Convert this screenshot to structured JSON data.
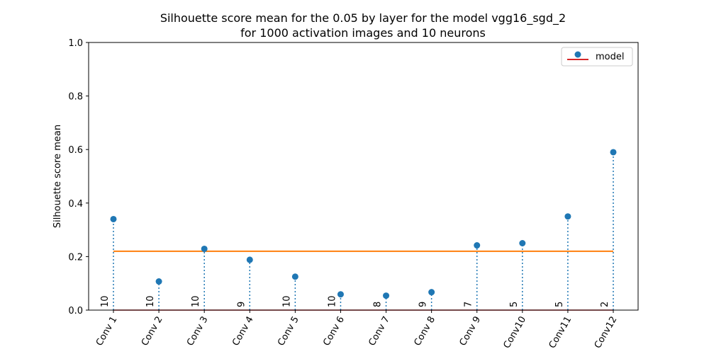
{
  "chart_data": {
    "type": "stem",
    "title_line1": "Silhouette score mean for the 0.05 by layer for the model vgg16_sgd_2",
    "title_line2": "for 1000 activation images and 10 neurons",
    "ylabel": "Silhouette score mean",
    "ylim": [
      0,
      1.0
    ],
    "yticks": [
      "0.0",
      "0.2",
      "0.4",
      "0.6",
      "0.8",
      "1.0"
    ],
    "categories": [
      "Conv 1",
      "Conv 2",
      "Conv 3",
      "Conv 4",
      "Conv 5",
      "Conv 6",
      "Conv 7",
      "Conv 8",
      "Conv 9",
      "Conv10",
      "Conv11",
      "Conv12"
    ],
    "values": [
      0.34,
      0.107,
      0.229,
      0.188,
      0.125,
      0.059,
      0.054,
      0.067,
      0.242,
      0.25,
      0.35,
      0.59
    ],
    "annotations": [
      "10",
      "10",
      "10",
      "9",
      "10",
      "10",
      "8",
      "9",
      "7",
      "5",
      "5",
      "2"
    ],
    "mean_line": 0.22,
    "legend": {
      "label": "model",
      "position": "upper right"
    },
    "colors": {
      "stem": "#1f77b4",
      "mean": "#ff7f0e",
      "baseline": "#d62728"
    }
  }
}
